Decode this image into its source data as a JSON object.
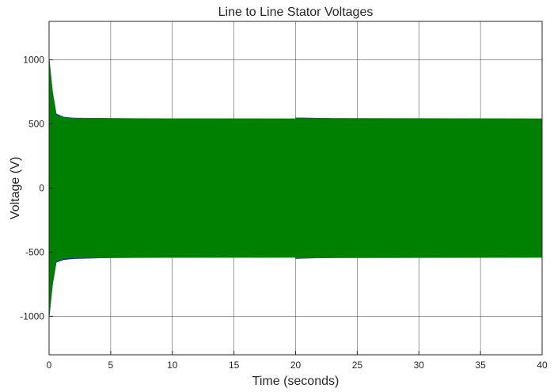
{
  "chart_data": {
    "type": "line",
    "title": "Line to Line Stator Voltages",
    "xlabel": "Time (seconds)",
    "ylabel": "Voltage (V)",
    "xlim": [
      0,
      40
    ],
    "ylim": [
      -1300,
      1300
    ],
    "xticks": [
      0,
      5,
      10,
      15,
      20,
      25,
      30,
      35,
      40
    ],
    "yticks": [
      -1000,
      -500,
      0,
      500,
      1000
    ],
    "xtick_labels": [
      "0",
      "5",
      "10",
      "15",
      "20",
      "25",
      "30",
      "35",
      "40"
    ],
    "ytick_labels": [
      "-1000",
      "-500",
      "0",
      "500",
      "1000"
    ],
    "grid": true,
    "series": [
      {
        "color": "#0000ff",
        "envelope": {
          "t": [
            0,
            0.3,
            0.6,
            1.2,
            2.0,
            5.0,
            10.0,
            19.99,
            20.0,
            21.0,
            23.0,
            40.0
          ],
          "upper": [
            1030,
            750,
            580,
            555,
            548,
            545,
            543,
            542,
            550,
            548,
            545,
            542
          ],
          "lower": [
            -1030,
            -750,
            -580,
            -560,
            -552,
            -545,
            -543,
            -542,
            -552,
            -548,
            -545,
            -542
          ]
        }
      },
      {
        "color": "#008000",
        "envelope": {
          "t": [
            0,
            0.3,
            0.6,
            1.2,
            2.0,
            5.0,
            10.0,
            19.99,
            20.0,
            21.0,
            23.0,
            40.0
          ],
          "upper": [
            1030,
            750,
            575,
            552,
            547,
            544,
            542,
            541,
            550,
            547,
            544,
            541
          ],
          "lower": [
            -1030,
            -750,
            -575,
            -552,
            -547,
            -544,
            -542,
            -541,
            -550,
            -547,
            -544,
            -541
          ]
        }
      }
    ]
  }
}
